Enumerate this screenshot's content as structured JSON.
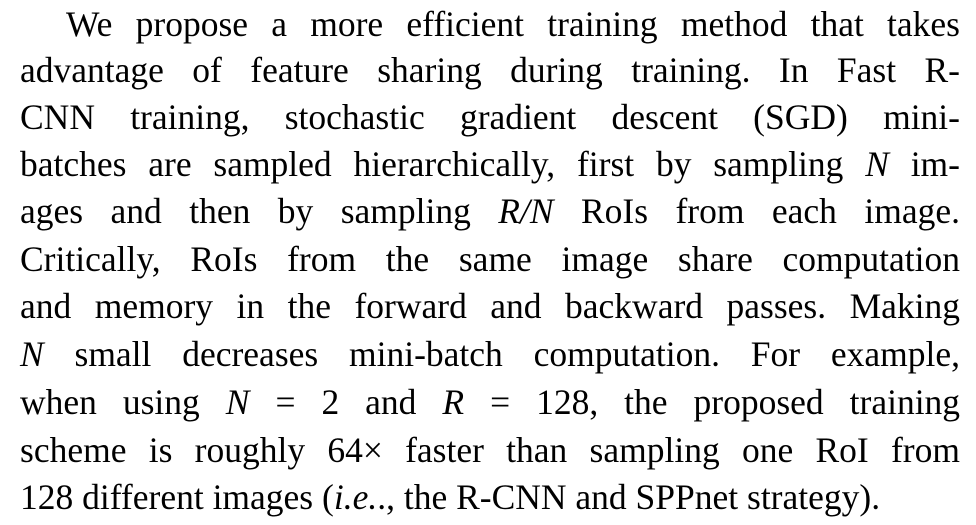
{
  "paragraph": {
    "lines": [
      "We propose a more efficient training method that takes",
      "advantage of feature sharing during training. In Fast R-",
      "CNN training, stochastic gradient descent (SGD) mini-",
      "batches are sampled hierarchically, first by sampling",
      "im-",
      "ages and then by sampling",
      "RoIs from each image.",
      "Critically, RoIs from the same image share computation",
      "and memory in the forward and backward passes. Making",
      "small decreases mini-batch computation. For example,",
      "when using",
      "= 2 and",
      "= 128, the proposed training",
      "scheme is roughly 64× faster than sampling one RoI from",
      "128 different images (",
      "i.e.",
      "., the R-CNN and SPPnet strategy)."
    ],
    "math": {
      "N": "N",
      "R_over_N": "R/N",
      "R": "R"
    }
  }
}
